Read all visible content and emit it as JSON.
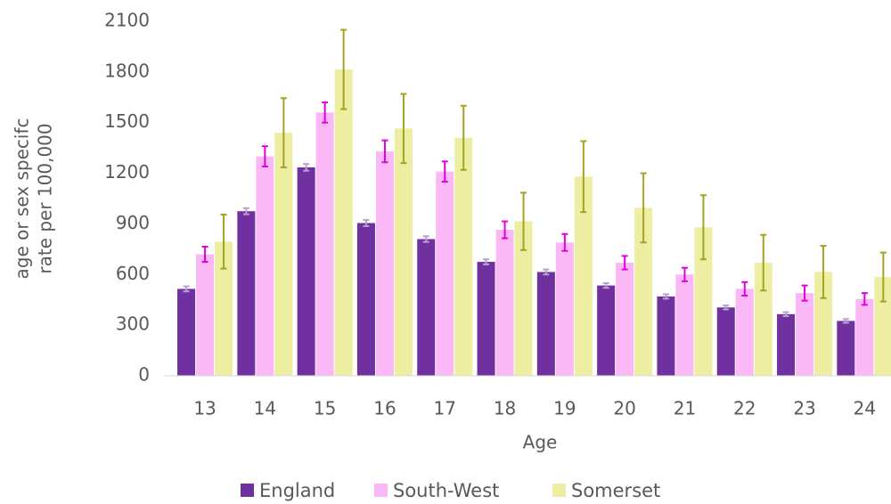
{
  "chart_data": {
    "type": "bar",
    "x_label": "Age",
    "y_label": [
      "age or sex specifc",
      "rate per 100,000"
    ],
    "categories": [
      "13",
      "14",
      "15",
      "16",
      "17",
      "18",
      "19",
      "20",
      "21",
      "22",
      "23",
      "24"
    ],
    "series": [
      {
        "name": "England",
        "color": "#7030a0",
        "error_color": "#b8a0d0",
        "values": [
          515,
          975,
          1235,
          905,
          810,
          675,
          615,
          535,
          470,
          405,
          365,
          325
        ],
        "errors": [
          15,
          18,
          20,
          18,
          17,
          15,
          15,
          14,
          13,
          12,
          12,
          11
        ]
      },
      {
        "name": "South-West",
        "color": "#fbb8f6",
        "error_color": "#e000dc",
        "values": [
          720,
          1300,
          1560,
          1330,
          1210,
          865,
          790,
          670,
          600,
          515,
          490,
          455
        ],
        "errors": [
          45,
          60,
          60,
          65,
          60,
          50,
          50,
          40,
          40,
          40,
          45,
          35
        ]
      },
      {
        "name": "Somerset",
        "color": "#eeeea2",
        "error_color": "#a3a324",
        "values": [
          795,
          1440,
          1815,
          1465,
          1410,
          915,
          1180,
          995,
          880,
          670,
          615,
          585
        ],
        "errors": [
          160,
          205,
          235,
          205,
          190,
          170,
          210,
          205,
          190,
          165,
          155,
          145
        ]
      }
    ],
    "ylim": [
      0,
      2100
    ],
    "yticks": [
      0,
      300,
      600,
      900,
      1200,
      1500,
      1800,
      2100
    ],
    "grid": false,
    "legend": "bottom"
  }
}
